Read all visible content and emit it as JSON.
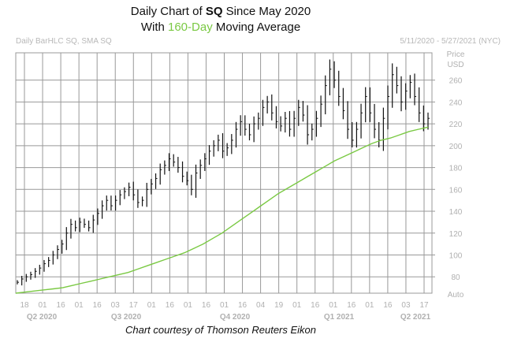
{
  "title": {
    "line1_prefix": "Daily Chart of ",
    "ticker": "SQ",
    "line1_suffix": " Since May 2020",
    "line2_prefix": "With ",
    "ma_label": "160-Day",
    "line2_suffix": " Moving Average"
  },
  "header": {
    "left": "Daily BarHLC SQ, SMA SQ",
    "right": "5/11/2020 - 5/27/2021 (NYC)"
  },
  "credit": "Chart courtesy of Thomson Reuters Eikon",
  "colors": {
    "price_bars": "#111111",
    "sma": "#7ac943",
    "grid": "#999999",
    "axis_text": "#b0b0b0"
  },
  "chart_data": {
    "type": "line",
    "title": "Daily Chart of SQ Since May 2020 With 160-Day Moving Average",
    "ylabel": "Price USD",
    "ylim": [
      65,
      285
    ],
    "y_ticks": [
      80,
      100,
      120,
      140,
      160,
      180,
      200,
      220,
      240,
      260
    ],
    "y_unit_label_top": "Price",
    "y_unit_label_bottom": "USD",
    "auto_label": "Auto",
    "x_tick_labels": [
      "18",
      "01",
      "16",
      "01",
      "16",
      "03",
      "17",
      "01",
      "16",
      "01",
      "16",
      "01",
      "16",
      "04",
      "19",
      "01",
      "16",
      "01",
      "16",
      "01",
      "16",
      "03",
      "17"
    ],
    "quarter_labels": [
      "Q2 2020",
      "Q3 2020",
      "Q4 2020",
      "Q1 2021",
      "Q2 2021"
    ],
    "series": [
      {
        "name": "SQ Daily BarHLC (approx. close)",
        "type": "ohlc-bars",
        "values": [
          75,
          78,
          80,
          82,
          85,
          88,
          92,
          95,
          100,
          105,
          110,
          120,
          128,
          125,
          130,
          128,
          125,
          132,
          138,
          145,
          150,
          145,
          150,
          155,
          158,
          162,
          155,
          148,
          150,
          160,
          165,
          170,
          178,
          182,
          188,
          185,
          180,
          172,
          168,
          160,
          175,
          182,
          188,
          195,
          200,
          205,
          195,
          198,
          205,
          215,
          222,
          215,
          210,
          220,
          225,
          235,
          240,
          230,
          222,
          218,
          225,
          215,
          225,
          235,
          228,
          210,
          215,
          225,
          238,
          255,
          270,
          260,
          245,
          232,
          215,
          205,
          215,
          230,
          245,
          230,
          215,
          205,
          225,
          245,
          265,
          255,
          240,
          250,
          258,
          245,
          230,
          220,
          225
        ]
      },
      {
        "name": "SMA 160-Day",
        "values": [
          65,
          66,
          67,
          68,
          69,
          70,
          72,
          74,
          76,
          78,
          80,
          82,
          84,
          87,
          90,
          93,
          96,
          99,
          102,
          106,
          110,
          115,
          120,
          126,
          132,
          138,
          144,
          150,
          156,
          161,
          166,
          171,
          176,
          181,
          186,
          190,
          194,
          198,
          202,
          205,
          207,
          210,
          213,
          215,
          217
        ]
      }
    ]
  }
}
